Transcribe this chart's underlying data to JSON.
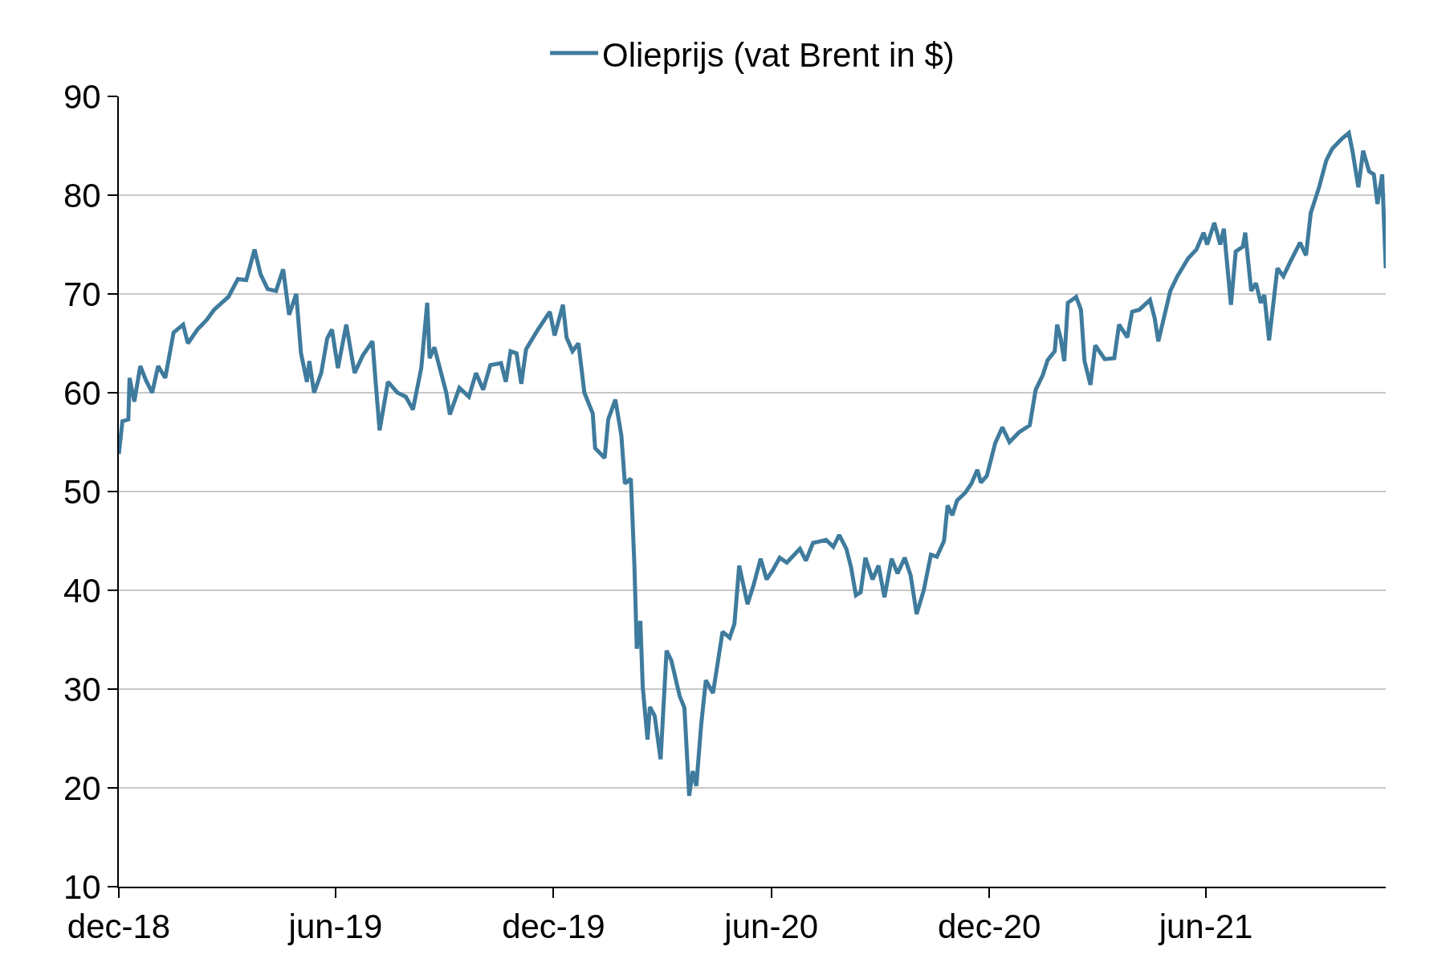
{
  "chart_data": {
    "type": "line",
    "x": [
      "2018-12-01",
      "2018-12-04",
      "2018-12-09",
      "2018-12-10",
      "2018-12-14",
      "2018-12-19",
      "2018-12-24",
      "2018-12-29",
      "2019-01-03",
      "2019-01-09",
      "2019-01-16",
      "2019-01-24",
      "2019-01-28",
      "2019-02-05",
      "2019-02-13",
      "2019-02-19",
      "2019-03-03",
      "2019-03-11",
      "2019-03-18",
      "2019-03-25",
      "2019-03-30",
      "2019-04-05",
      "2019-04-12",
      "2019-04-18",
      "2019-04-23",
      "2019-04-29",
      "2019-05-03",
      "2019-05-08",
      "2019-05-10",
      "2019-05-14",
      "2019-05-20",
      "2019-05-25",
      "2019-05-29",
      "2019-06-03",
      "2019-06-10",
      "2019-06-17",
      "2019-06-24",
      "2019-07-02",
      "2019-07-05",
      "2019-07-08",
      "2019-07-15",
      "2019-07-23",
      "2019-07-30",
      "2019-08-05",
      "2019-08-12",
      "2019-08-17",
      "2019-08-19",
      "2019-08-23",
      "2019-09-02",
      "2019-09-05",
      "2019-09-13",
      "2019-09-21",
      "2019-09-27",
      "2019-10-03",
      "2019-10-09",
      "2019-10-18",
      "2019-10-22",
      "2019-10-26",
      "2019-10-31",
      "2019-11-04",
      "2019-11-08",
      "2019-11-18",
      "2019-11-28",
      "2019-12-02",
      "2019-12-09",
      "2019-12-12",
      "2019-12-17",
      "2019-12-22",
      "2019-12-27",
      "2020-01-03",
      "2020-01-05",
      "2020-01-13",
      "2020-01-16",
      "2020-01-22",
      "2020-01-27",
      "2020-01-30",
      "2020-02-04",
      "2020-02-07",
      "2020-02-09",
      "2020-02-12",
      "2020-02-14",
      "2020-02-18",
      "2020-02-20",
      "2020-02-24",
      "2020-02-29",
      "2020-03-05",
      "2020-03-09",
      "2020-03-16",
      "2020-03-20",
      "2020-03-24",
      "2020-03-27",
      "2020-03-30",
      "2020-04-03",
      "2020-04-07",
      "2020-04-13",
      "2020-04-17",
      "2020-04-21",
      "2020-04-27",
      "2020-05-01",
      "2020-05-05",
      "2020-05-12",
      "2020-05-17",
      "2020-05-23",
      "2020-05-28",
      "2020-06-02",
      "2020-06-08",
      "2020-06-14",
      "2020-06-21",
      "2020-06-25",
      "2020-06-30",
      "2020-07-06",
      "2020-07-17",
      "2020-07-23",
      "2020-07-28",
      "2020-08-03",
      "2020-08-07",
      "2020-08-11",
      "2020-08-15",
      "2020-08-19",
      "2020-08-25",
      "2020-08-30",
      "2020-09-04",
      "2020-09-10",
      "2020-09-15",
      "2020-09-21",
      "2020-09-26",
      "2020-10-01",
      "2020-10-07",
      "2020-10-13",
      "2020-10-18",
      "2020-10-24",
      "2020-10-27",
      "2020-10-31",
      "2020-11-04",
      "2020-11-11",
      "2020-11-16",
      "2020-11-21",
      "2020-11-24",
      "2020-11-29",
      "2020-12-06",
      "2020-12-12",
      "2020-12-18",
      "2020-12-26",
      "2021-01-04",
      "2021-01-09",
      "2021-01-15",
      "2021-01-19",
      "2021-01-25",
      "2021-01-27",
      "2021-01-30",
      "2021-02-02",
      "2021-02-05",
      "2021-02-12",
      "2021-02-16",
      "2021-02-19",
      "2021-02-24",
      "2021-02-28",
      "2021-03-08",
      "2021-03-16",
      "2021-03-20",
      "2021-03-27",
      "2021-03-31",
      "2021-04-06",
      "2021-04-15",
      "2021-04-19",
      "2021-04-22",
      "2021-05-02",
      "2021-05-08",
      "2021-05-17",
      "2021-05-24",
      "2021-05-30",
      "2021-06-02",
      "2021-06-08",
      "2021-06-13",
      "2021-06-16",
      "2021-06-22",
      "2021-06-26",
      "2021-07-02",
      "2021-07-04",
      "2021-07-09",
      "2021-07-13",
      "2021-07-17",
      "2021-07-20",
      "2021-07-24",
      "2021-07-31",
      "2021-08-05",
      "2021-08-11",
      "2021-08-19",
      "2021-08-24",
      "2021-08-28",
      "2021-09-04",
      "2021-09-10",
      "2021-09-15",
      "2021-09-23",
      "2021-09-29",
      "2021-10-02",
      "2021-10-07",
      "2021-10-11",
      "2021-10-16",
      "2021-10-20",
      "2021-10-23",
      "2021-10-27",
      "2021-10-30"
    ],
    "series": [
      {
        "name": "Olieprijs (vat Brent in $)",
        "color": "#3f7b9d",
        "values": [
          53.8,
          57.1,
          57.3,
          61.5,
          59.1,
          62.7,
          61.2,
          60.0,
          62.7,
          61.5,
          66.1,
          66.9,
          65.0,
          66.4,
          67.4,
          68.4,
          69.7,
          71.5,
          71.4,
          74.5,
          72.0,
          70.5,
          70.3,
          72.5,
          67.9,
          70.0,
          64.0,
          61.1,
          63.2,
          60.0,
          62.0,
          65.5,
          66.4,
          62.5,
          66.9,
          62.0,
          63.8,
          65.2,
          60.6,
          56.2,
          61.1,
          60.0,
          59.6,
          58.3,
          62.5,
          69.1,
          63.5,
          64.6,
          60.0,
          57.8,
          60.5,
          59.6,
          62.0,
          60.3,
          62.8,
          63.0,
          61.1,
          64.2,
          64.0,
          60.9,
          64.4,
          66.4,
          68.2,
          65.8,
          68.9,
          65.6,
          64.2,
          65.0,
          60.0,
          57.9,
          54.4,
          53.4,
          57.3,
          59.3,
          55.7,
          50.8,
          51.3,
          42.5,
          34.1,
          36.9,
          30.2,
          24.9,
          28.2,
          27.3,
          22.9,
          33.9,
          32.9,
          29.3,
          28.1,
          19.2,
          21.7,
          20.2,
          26.3,
          30.9,
          29.6,
          32.7,
          35.8,
          35.2,
          36.6,
          42.5,
          38.6,
          40.5,
          43.2,
          41.1,
          42.0,
          43.3,
          42.8,
          43.7,
          44.2,
          43.0,
          44.8,
          45.1,
          44.4,
          45.6,
          44.2,
          42.3,
          39.5,
          39.8,
          43.3,
          41.1,
          42.5,
          39.3,
          43.2,
          41.7,
          43.3,
          41.5,
          37.6,
          40.0,
          43.6,
          43.4,
          45.0,
          48.6,
          47.6,
          49.1,
          49.9,
          50.8,
          52.2,
          50.9,
          51.6,
          54.9,
          56.5,
          55.0,
          56.0,
          56.7,
          60.3,
          61.8,
          63.3,
          64.2,
          66.9,
          65.5,
          63.2,
          69.1,
          69.7,
          68.4,
          63.2,
          60.8,
          64.8,
          63.4,
          63.5,
          66.9,
          65.6,
          68.2,
          68.4,
          69.4,
          67.5,
          65.2,
          70.3,
          71.8,
          73.6,
          74.5,
          76.2,
          75.0,
          77.2,
          75.0,
          76.6,
          68.9,
          74.3,
          74.8,
          76.2,
          70.3,
          71.1,
          69.1,
          69.9,
          65.3,
          72.6,
          71.8,
          73.3,
          75.2,
          73.9,
          78.2,
          80.8,
          83.5,
          84.7,
          85.7,
          86.3,
          84.5,
          80.8,
          84.5,
          82.4,
          82.1,
          79.1,
          82.1,
          72.6
        ]
      }
    ],
    "xlim": [
      "2018-12-01",
      "2021-10-30"
    ],
    "xticks": [
      {
        "value": "2018-12-01",
        "label": "dec-18"
      },
      {
        "value": "2019-06-01",
        "label": "jun-19"
      },
      {
        "value": "2019-12-01",
        "label": "dec-19"
      },
      {
        "value": "2020-06-01",
        "label": "jun-20"
      },
      {
        "value": "2020-12-01",
        "label": "dec-20"
      },
      {
        "value": "2021-06-01",
        "label": "jun-21"
      }
    ],
    "ylim": [
      10,
      90
    ],
    "yticks": [
      10,
      20,
      30,
      40,
      50,
      60,
      70,
      80,
      90
    ],
    "grid": "y",
    "legend": "top",
    "line_style": "solid",
    "marker": "none"
  }
}
